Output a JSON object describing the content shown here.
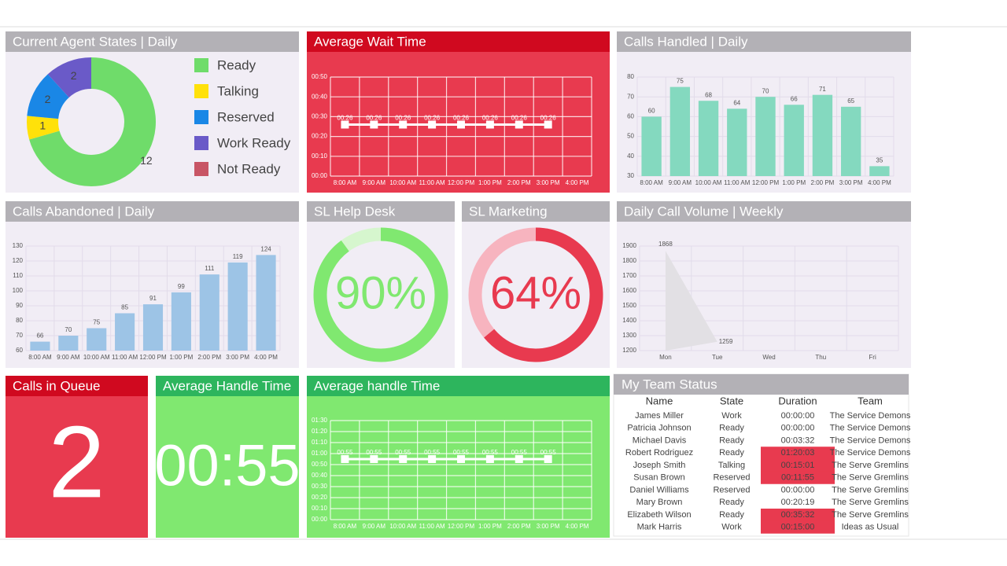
{
  "chart_data": [
    {
      "type": "donut",
      "title": "Current Agent States | Daily",
      "categories": [
        "Ready",
        "Talking",
        "Reserved",
        "Work Ready",
        "Not Ready"
      ],
      "values": [
        12,
        1,
        2,
        2,
        0
      ],
      "colors": [
        "#6fdc6a",
        "#ffe10a",
        "#1a87e6",
        "#6a5ac8",
        "#c85565"
      ]
    },
    {
      "type": "line",
      "title": "Average Wait Time",
      "categories": [
        "8:00 AM",
        "9:00 AM",
        "10:00 AM",
        "11:00 AM",
        "12:00 PM",
        "1:00 PM",
        "2:00 PM",
        "3:00 PM",
        "4:00 PM"
      ],
      "series": [
        {
          "color": "#ffffff",
          "values": [
            26,
            26,
            26,
            26,
            26,
            26,
            26,
            26,
            null
          ],
          "value_labels": [
            "00:26",
            "00:26",
            "00:26",
            "00:26",
            "00:26",
            "00:26",
            "00:26",
            "00:26",
            null
          ]
        }
      ],
      "ylim": [
        0,
        50
      ],
      "yticks": [
        {
          "value": 0,
          "label": "00:00"
        },
        {
          "value": 10,
          "label": "00:10"
        },
        {
          "value": 20,
          "label": "00:20"
        },
        {
          "value": 30,
          "label": "00:30"
        },
        {
          "value": 40,
          "label": "00:40"
        },
        {
          "value": 50,
          "label": "00:50"
        }
      ],
      "grid": true
    },
    {
      "type": "bar",
      "title": "Calls Handled | Daily",
      "categories": [
        "8:00 AM",
        "9:00 AM",
        "10:00 AM",
        "11:00 AM",
        "12:00 PM",
        "1:00 PM",
        "2:00 PM",
        "3:00 PM",
        "4:00 PM"
      ],
      "values": [
        60,
        75,
        68,
        64,
        70,
        66,
        71,
        65,
        35
      ],
      "color": "#84d9bf",
      "ylim": [
        30,
        80
      ],
      "yticks": [
        30,
        40,
        50,
        60,
        70,
        80
      ],
      "grid": true
    },
    {
      "type": "bar",
      "title": "Calls Abandoned | Daily",
      "categories": [
        "8:00 AM",
        "9:00 AM",
        "10:00 AM",
        "11:00 AM",
        "12:00 PM",
        "1:00 PM",
        "2:00 PM",
        "3:00 PM",
        "4:00 PM"
      ],
      "values": [
        66,
        70,
        75,
        85,
        91,
        99,
        111,
        119,
        124
      ],
      "color": "#9dc4e6",
      "ylim": [
        60,
        130
      ],
      "yticks": [
        60,
        70,
        80,
        90,
        100,
        110,
        120,
        130
      ],
      "grid": true
    },
    {
      "type": "gauge",
      "title": "SL Help Desk",
      "value": 90,
      "value_label": "90%",
      "color": "#80e870",
      "track_color": "#d6f6ce"
    },
    {
      "type": "gauge",
      "title": "SL Marketing",
      "value": 64,
      "value_label": "64%",
      "color": "#e83a4f",
      "track_color": "#f7b4bf"
    },
    {
      "type": "area",
      "title": "Daily Call Volume | Weekly",
      "categories": [
        "Mon",
        "Tue",
        "Wed",
        "Thu",
        "Fri"
      ],
      "values": [
        1868,
        1259,
        null,
        null,
        null
      ],
      "color": "#e2e0e4",
      "ylim": [
        1200,
        1900
      ],
      "yticks": [
        1200,
        1300,
        1400,
        1500,
        1600,
        1700,
        1800,
        1900
      ],
      "grid": true
    },
    {
      "type": "line",
      "title": "Average handle Time",
      "categories": [
        "8:00 AM",
        "9:00 AM",
        "10:00 AM",
        "11:00 AM",
        "12:00 PM",
        "1:00 PM",
        "2:00 PM",
        "3:00 PM",
        "4:00 PM"
      ],
      "series": [
        {
          "color": "#ffffff",
          "values": [
            55,
            55,
            55,
            55,
            55,
            55,
            55,
            55,
            null
          ],
          "value_labels": [
            "00:55",
            "00:55",
            "00:55",
            "00:55",
            "00:55",
            "00:55",
            "00:55",
            "00:55",
            null
          ]
        }
      ],
      "ylim": [
        0,
        90
      ],
      "yticks": [
        {
          "value": 0,
          "label": "00:00"
        },
        {
          "value": 10,
          "label": "00:10"
        },
        {
          "value": 20,
          "label": "00:20"
        },
        {
          "value": 30,
          "label": "00:30"
        },
        {
          "value": 40,
          "label": "00:40"
        },
        {
          "value": 50,
          "label": "00:50"
        },
        {
          "value": 60,
          "label": "01:00"
        },
        {
          "value": 70,
          "label": "01:10"
        },
        {
          "value": 80,
          "label": "01:20"
        },
        {
          "value": 90,
          "label": "01:30"
        }
      ],
      "grid": true
    }
  ],
  "tiles": [
    {
      "title": "Calls in Queue",
      "value": 2
    },
    {
      "title": "Average Handle Time",
      "value": "00:55"
    }
  ],
  "table": {
    "title": "My Team Status",
    "columns": [
      "Name",
      "State",
      "Duration",
      "Team"
    ],
    "rows": [
      {
        "cells": [
          "James Miller",
          "Work",
          "00:00:00",
          "The Service Demons"
        ],
        "alert": false
      },
      {
        "cells": [
          "Patricia Johnson",
          "Ready",
          "00:00:00",
          "The Service Demons"
        ],
        "alert": false
      },
      {
        "cells": [
          "Michael Davis",
          "Ready",
          "00:03:32",
          "The Service Demons"
        ],
        "alert": false
      },
      {
        "cells": [
          "Robert Rodriguez",
          "Ready",
          "01:20:03",
          "The Service Demons"
        ],
        "alert": true
      },
      {
        "cells": [
          "Joseph Smith",
          "Talking",
          "00:15:01",
          "The Serve Gremlins"
        ],
        "alert": true
      },
      {
        "cells": [
          "Susan Brown",
          "Reserved",
          "00:11:55",
          "The Serve Gremlins"
        ],
        "alert": true
      },
      {
        "cells": [
          "Daniel Williams",
          "Reserved",
          "00:00:00",
          "The Serve Gremlins"
        ],
        "alert": false
      },
      {
        "cells": [
          "Mary Brown",
          "Ready",
          "00:20:19",
          "The Serve Gremlins"
        ],
        "alert": false
      },
      {
        "cells": [
          "Elizabeth Wilson",
          "Ready",
          "00:35:32",
          "The Serve Gremlins"
        ],
        "alert": true
      },
      {
        "cells": [
          "Mark Harris",
          "Work",
          "00:15:00",
          "Ideas as Usual"
        ],
        "alert": true
      }
    ]
  }
}
